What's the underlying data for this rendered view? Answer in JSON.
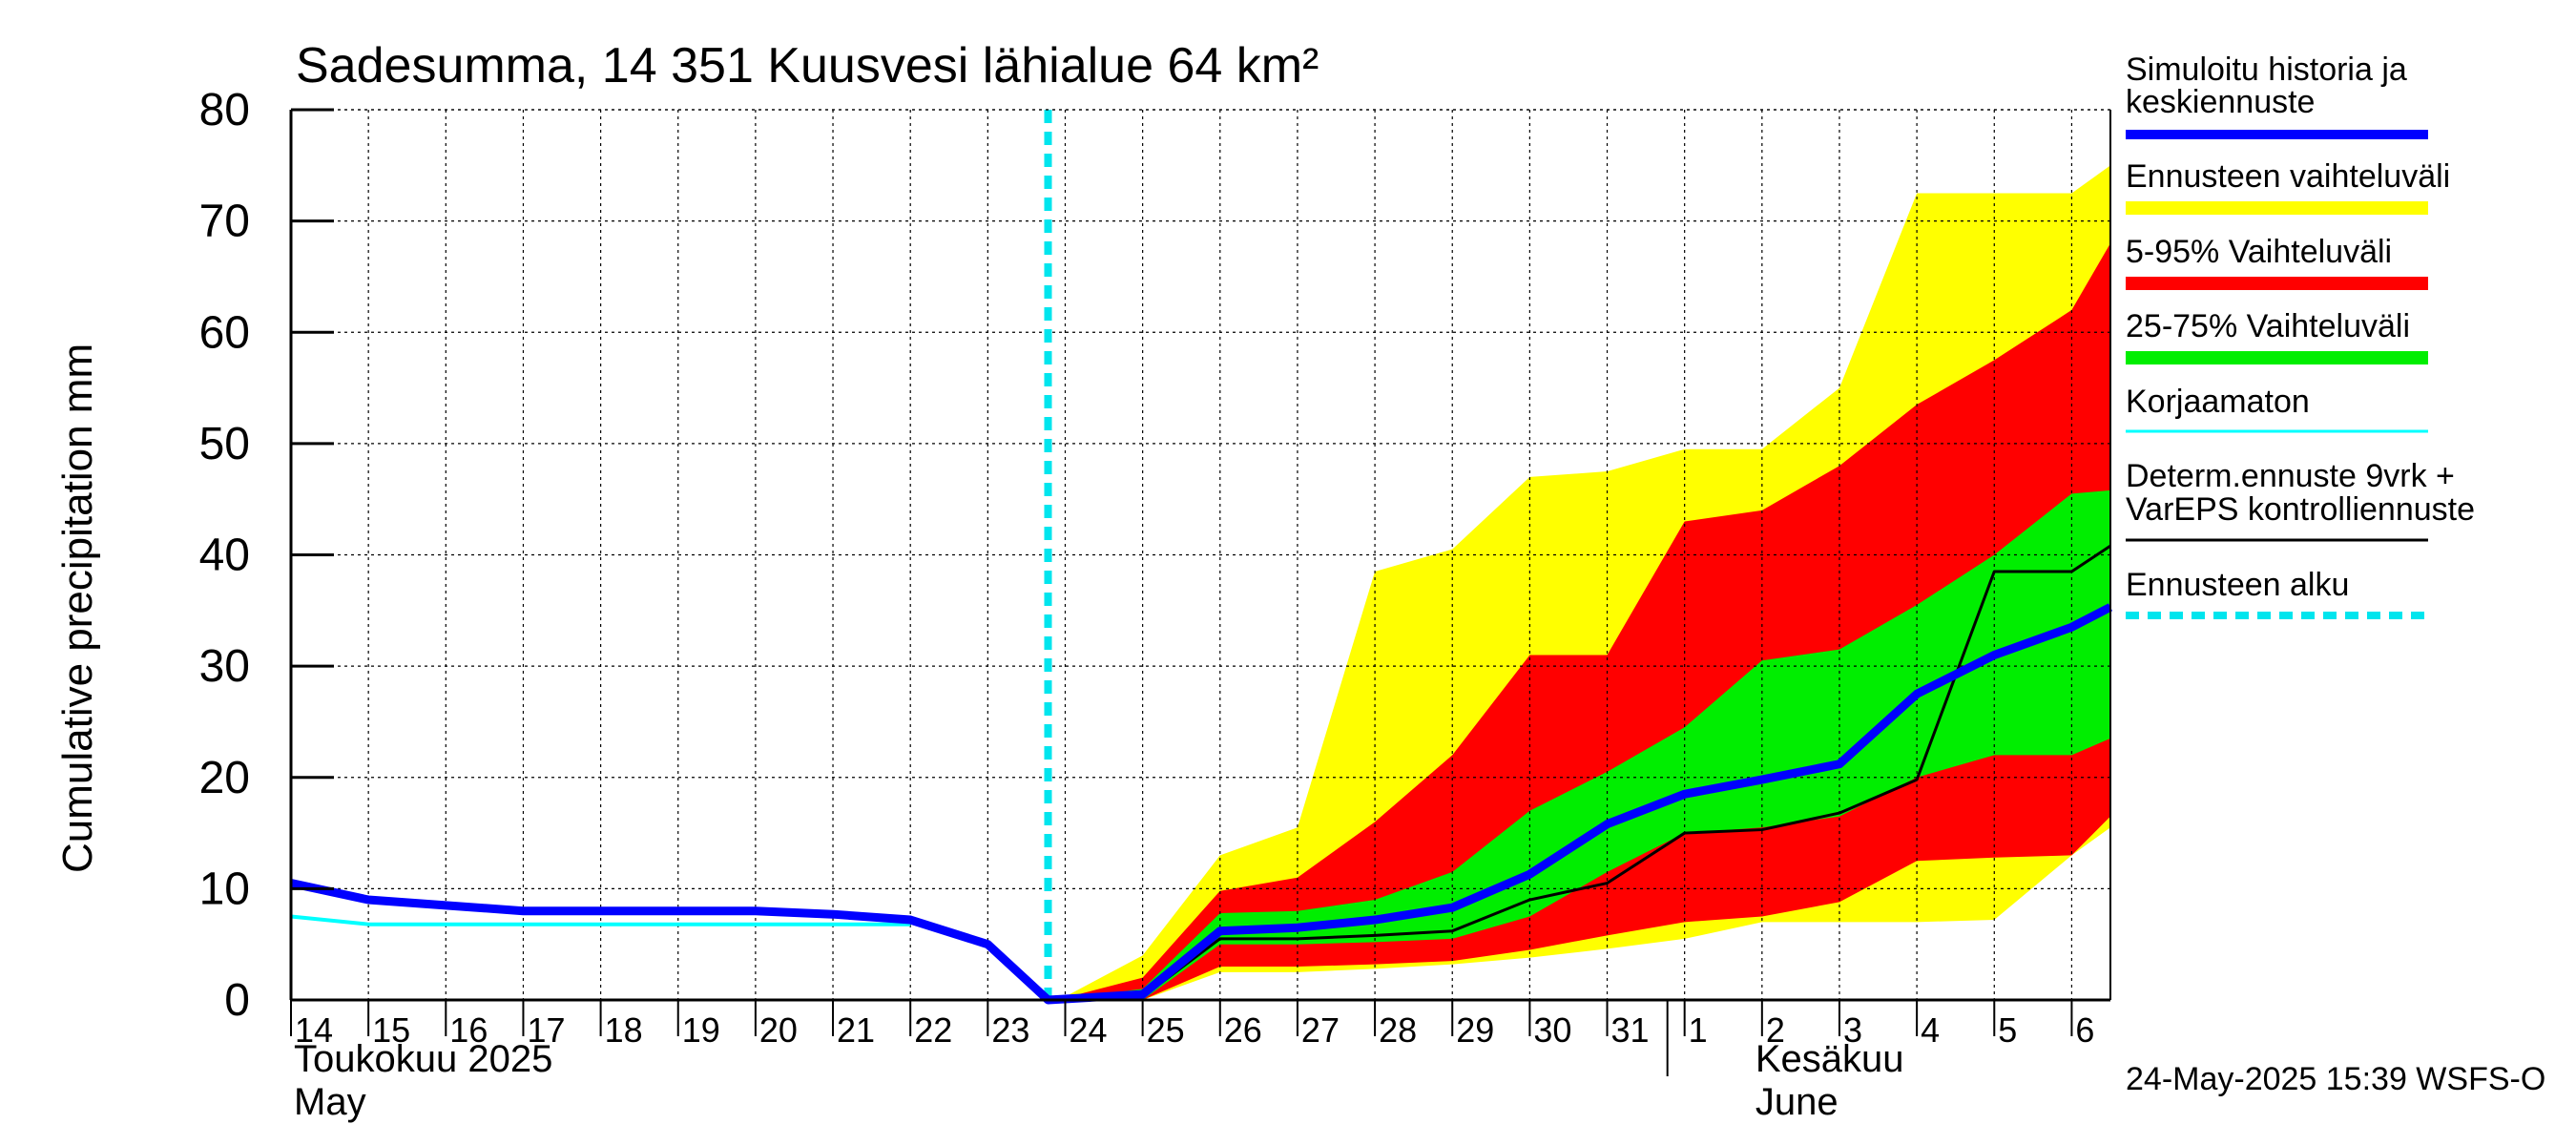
{
  "chart_data": {
    "type": "area",
    "title": "Sadesumma, 14 351 Kuusvesi lähialue 64 km²",
    "ylabel": "Cumulative precipitation   mm",
    "ylim": [
      0,
      80
    ],
    "yticks": [
      0,
      10,
      20,
      30,
      40,
      50,
      60,
      70,
      80
    ],
    "grid": true,
    "legend_position": "right",
    "x_tick_labels": [
      "14",
      "15",
      "16",
      "17",
      "18",
      "19",
      "20",
      "21",
      "22",
      "23",
      "24",
      "25",
      "26",
      "27",
      "28",
      "29",
      "30",
      "31",
      "1",
      "2",
      "3",
      "4",
      "5",
      "6"
    ],
    "month_labels": [
      {
        "line1": "Toukokuu  2025",
        "line2": "May"
      },
      {
        "line1": "Kesäkuu",
        "line2": "June"
      }
    ],
    "footer": "24-May-2025 15:39 WSFS-O",
    "forecast_start": "24",
    "legend": [
      {
        "label": "Simuloitu historia ja\nkeskiennuste",
        "color": "#0000ff",
        "style": "thick"
      },
      {
        "label": "Ennusteen vaihteluväli",
        "color": "#ffff00",
        "style": "band"
      },
      {
        "label": "5-95% Vaihteluväli",
        "color": "#ff0000",
        "style": "band"
      },
      {
        "label": "25-75% Vaihteluväli",
        "color": "#00ee00",
        "style": "band"
      },
      {
        "label": "Korjaamaton",
        "color": "#00ffff",
        "style": "thin"
      },
      {
        "label": "Determ.ennuste 9vrk +\nVarEPS kontrolliennuste",
        "color": "#000000",
        "style": "thin"
      },
      {
        "label": "Ennusteen alku",
        "color": "#00e5ee",
        "style": "dashed"
      }
    ],
    "band_x": [
      "24",
      "25",
      "26",
      "27",
      "28",
      "29",
      "30",
      "31",
      "1",
      "2",
      "3",
      "4",
      "5",
      "6",
      "6+"
    ],
    "series": [
      {
        "name": "Ennusteen vaihteluväli",
        "color": "#ffff00",
        "upper": [
          0.3,
          4,
          13,
          15.5,
          38.5,
          40.5,
          47,
          47.5,
          49.5,
          49.5,
          55,
          72.5,
          72.5,
          72.5,
          75
        ],
        "lower": [
          0,
          0,
          2.5,
          2.5,
          2.8,
          3.2,
          3.8,
          4.6,
          5.5,
          7,
          7,
          7,
          7.2,
          13,
          15.5
        ]
      },
      {
        "name": "5-95% Vaihteluväli",
        "color": "#ff0000",
        "upper": [
          0.2,
          2,
          9.8,
          11,
          16,
          22,
          31,
          31,
          43,
          44,
          48,
          53.5,
          57.5,
          62,
          68
        ],
        "lower": [
          0,
          0,
          3,
          3,
          3.2,
          3.5,
          4.5,
          5.8,
          7,
          7.5,
          8.8,
          12.5,
          12.8,
          13,
          16.5
        ]
      },
      {
        "name": "25-75% Vaihteluväli",
        "color": "#00ee00",
        "upper": [
          0.1,
          1,
          7.8,
          8,
          9,
          11.5,
          17,
          20.5,
          24.5,
          30.5,
          31.5,
          35.5,
          40,
          45.5,
          45.8
        ],
        "lower": [
          0,
          0,
          5,
          5,
          5.2,
          5.5,
          7.5,
          11.5,
          15,
          15.5,
          16.5,
          20,
          22,
          22,
          23.5
        ]
      },
      {
        "name": "Korjaamaton",
        "color": "#00ffff",
        "x": [
          "14",
          "15",
          "16",
          "17",
          "18",
          "19",
          "20",
          "21",
          "22"
        ],
        "values": [
          7.5,
          6.8,
          6.8,
          6.8,
          6.8,
          6.8,
          6.8,
          6.8,
          6.8
        ]
      },
      {
        "name": "Determ.ennuste 9vrk + VarEPS kontrolliennuste",
        "color": "#000000",
        "x": [
          "24",
          "25",
          "26",
          "27",
          "28",
          "29",
          "30",
          "31",
          "1",
          "2",
          "3",
          "4",
          "5",
          "6",
          "6+"
        ],
        "values": [
          0,
          0.3,
          5.5,
          5.5,
          5.8,
          6.2,
          9,
          10.5,
          15,
          15.3,
          16.8,
          19.8,
          38.5,
          38.5,
          40.8
        ]
      },
      {
        "name": "Simuloitu historia ja keskiennuste",
        "color": "#0000ff",
        "x": [
          "14",
          "15",
          "16",
          "17",
          "18",
          "19",
          "20",
          "21",
          "22",
          "23",
          "24",
          "25",
          "26",
          "27",
          "28",
          "29",
          "30",
          "31",
          "1",
          "2",
          "3",
          "4",
          "5",
          "6",
          "6+"
        ],
        "values": [
          10.5,
          9,
          8.5,
          8,
          8,
          8,
          8,
          7.7,
          7.2,
          5,
          0,
          0.5,
          6.2,
          6.5,
          7.2,
          8.3,
          11.3,
          15.8,
          18.5,
          19.8,
          21.2,
          27.5,
          31,
          33.5,
          35.3
        ]
      }
    ]
  }
}
